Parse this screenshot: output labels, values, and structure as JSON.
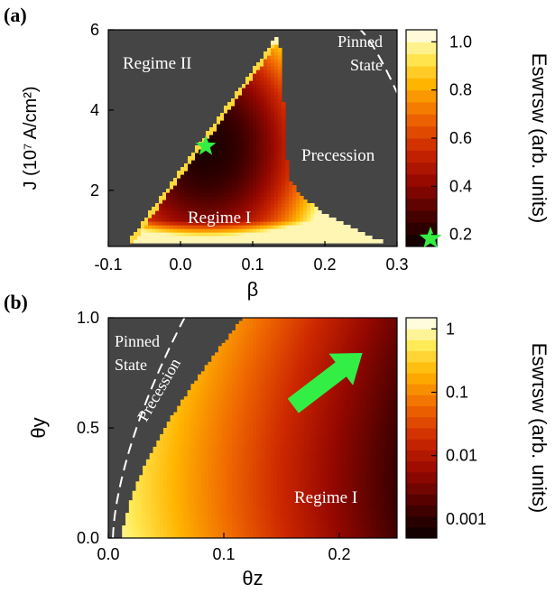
{
  "panels": {
    "a": {
      "label": "(a)"
    },
    "b": {
      "label": "(b)"
    }
  },
  "chart_data": [
    {
      "type": "heatmap",
      "panel": "(a)",
      "xlabel": "β",
      "ylabel": "J (10⁷ A/cm²)",
      "xlim": [
        -0.1,
        0.3
      ],
      "ylim": [
        0.6,
        6.0
      ],
      "x_ticks": [
        "-0.1",
        "0.0",
        "0.1",
        "0.2",
        "0.3"
      ],
      "y_ticks": [
        "2",
        "4",
        "6"
      ],
      "colorbar": {
        "label": "Eswτsw (arb. units)",
        "scale": "linear",
        "range": [
          0.15,
          1.05
        ],
        "ticks": [
          "0.2",
          "0.4",
          "0.6",
          "0.8",
          "1.0"
        ]
      },
      "regions": [
        {
          "label": "Regime II"
        },
        {
          "label": "Regime I"
        },
        {
          "label": "Precession"
        },
        {
          "label": "Pinned State",
          "lines": [
            "Pinned",
            "State"
          ]
        }
      ],
      "marker": {
        "shape": "star",
        "x": 0.035,
        "y": 3.1,
        "color": "#33ee44",
        "colorbar_value": 0.18
      },
      "boundary": {
        "style": "dashed",
        "separates": [
          "Precession",
          "Pinned State"
        ]
      },
      "background_color": "#454545"
    },
    {
      "type": "heatmap",
      "panel": "(b)",
      "xlabel": "θz",
      "ylabel": "θy",
      "xlim": [
        0.0,
        0.25
      ],
      "ylim": [
        0.0,
        1.0
      ],
      "x_ticks": [
        "0.0",
        "0.1",
        "0.2"
      ],
      "y_ticks": [
        "0.0",
        "0.5",
        "1.0"
      ],
      "colorbar": {
        "label": "Eswτsw (arb. units)",
        "scale": "log",
        "range": [
          0.0005,
          1.5
        ],
        "ticks": [
          "0.001",
          "0.01",
          "0.1",
          "1"
        ]
      },
      "regions": [
        {
          "label": "Pinned State",
          "lines": [
            "Pinned",
            "State"
          ]
        },
        {
          "label": "Precession"
        },
        {
          "label": "Regime I"
        }
      ],
      "arrow": {
        "from": [
          0.16,
          0.6
        ],
        "to": [
          0.22,
          0.84
        ],
        "color": "#33ee44"
      },
      "boundary": {
        "style": "dashed",
        "separates": [
          "Pinned State",
          "Precession"
        ]
      },
      "background_color": "#454545"
    }
  ]
}
